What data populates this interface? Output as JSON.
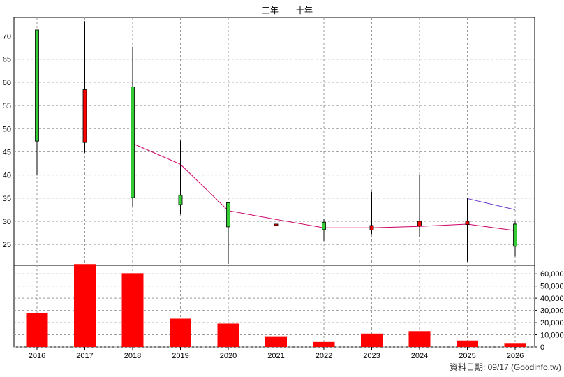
{
  "legend": {
    "items": [
      {
        "label": "三年",
        "color": "#cc0066"
      },
      {
        "label": "十年",
        "color": "#6633cc"
      }
    ]
  },
  "footer": {
    "text": "資料日期: 09/17  (Goodinfo.tw)"
  },
  "colors": {
    "up": "#ff0000",
    "down": "#33cc33",
    "volume": "#ff0000",
    "ma3": "#cc0066",
    "ma10": "#6633cc",
    "grid": "#999999"
  },
  "chart_data": [
    {
      "type": "candlestick",
      "categories": [
        "2016",
        "2017",
        "2018",
        "2019",
        "2020",
        "2021",
        "2022",
        "2023",
        "2024",
        "2025",
        "2026"
      ],
      "ylim": [
        20.5,
        74
      ],
      "yticks": [
        25,
        30,
        35,
        40,
        45,
        50,
        55,
        60,
        65,
        70
      ],
      "grid": true,
      "legend_position": "top-center",
      "candles": [
        {
          "x": "2016",
          "open": 71.3,
          "close": 47.3,
          "high": 71.3,
          "low": 39.9
        },
        {
          "x": "2017",
          "open": 47.0,
          "close": 58.4,
          "high": 73.2,
          "low": 44.8
        },
        {
          "x": "2018",
          "open": 59.0,
          "close": 35.1,
          "high": 67.7,
          "low": 33.2
        },
        {
          "x": "2019",
          "open": 35.6,
          "close": 33.6,
          "high": 47.4,
          "low": 31.6
        },
        {
          "x": "2020",
          "open": 34.0,
          "close": 28.8,
          "high": 34.1,
          "low": 20.8
        },
        {
          "x": "2021",
          "open": 29.2,
          "close": 29.4,
          "high": 30.3,
          "low": 25.5
        },
        {
          "x": "2022",
          "open": 29.8,
          "close": 28.2,
          "high": 30.5,
          "low": 25.8
        },
        {
          "x": "2023",
          "open": 28.1,
          "close": 29.1,
          "high": 36.4,
          "low": 27.2
        },
        {
          "x": "2024",
          "open": 29.0,
          "close": 30.0,
          "high": 40.1,
          "low": 26.6
        },
        {
          "x": "2025",
          "open": 29.3,
          "close": 30.0,
          "high": 35.1,
          "low": 21.3
        },
        {
          "x": "2026",
          "open": 29.4,
          "close": 24.6,
          "high": 30.1,
          "low": 22.4
        }
      ],
      "series": [
        {
          "name": "三年",
          "points": [
            {
              "x": "2018",
              "y": 46.8
            },
            {
              "x": "2019",
              "y": 42.3
            },
            {
              "x": "2020",
              "y": 32.3
            },
            {
              "x": "2021",
              "y": 30.4
            },
            {
              "x": "2022",
              "y": 28.6
            },
            {
              "x": "2023",
              "y": 28.6
            },
            {
              "x": "2024",
              "y": 28.9
            },
            {
              "x": "2025",
              "y": 29.4
            },
            {
              "x": "2026",
              "y": 28.0
            }
          ]
        },
        {
          "name": "十年",
          "points": [
            {
              "x": "2025",
              "y": 34.9
            },
            {
              "x": "2026",
              "y": 32.5
            }
          ]
        }
      ]
    },
    {
      "type": "bar",
      "categories": [
        "2016",
        "2017",
        "2018",
        "2019",
        "2020",
        "2021",
        "2022",
        "2023",
        "2024",
        "2025",
        "2026"
      ],
      "values": [
        27500,
        68000,
        60500,
        23200,
        19200,
        8800,
        4100,
        11000,
        13000,
        5300,
        2700
      ],
      "ylim": [
        0,
        67000
      ],
      "yticks": [
        "0",
        "10,000",
        "20,000",
        "30,000",
        "40,000",
        "50,000",
        "60,000"
      ],
      "ytick_values": [
        0,
        10000,
        20000,
        30000,
        40000,
        50000,
        60000
      ],
      "grid": true
    }
  ]
}
